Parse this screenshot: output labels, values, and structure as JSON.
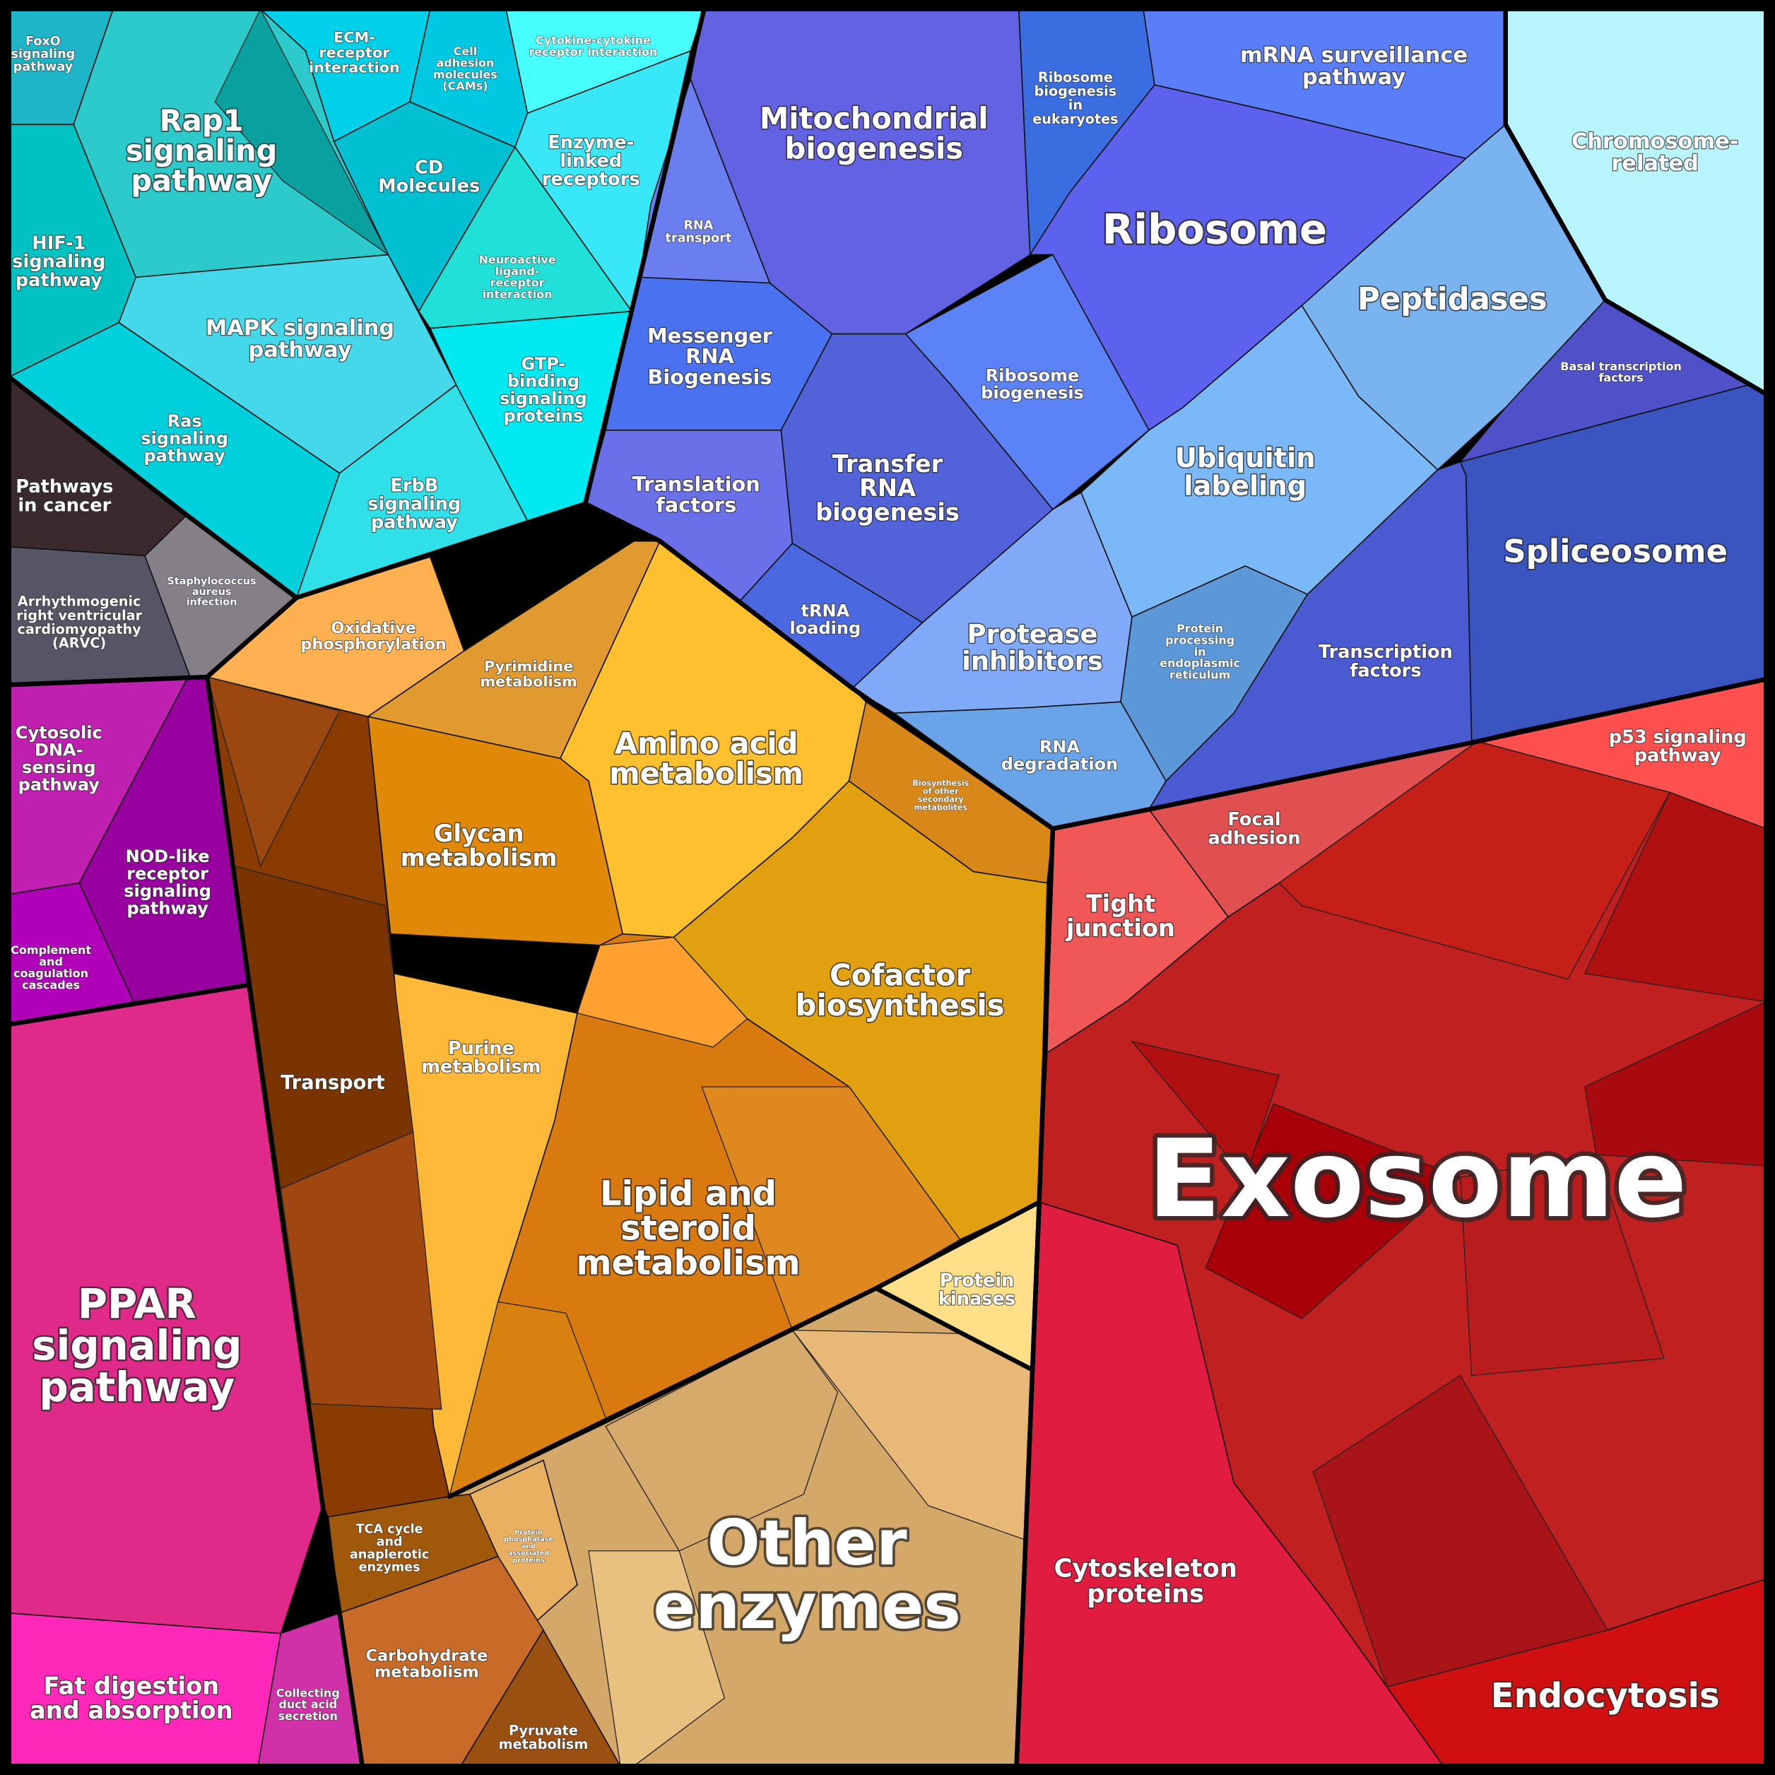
{
  "nodes": [
    {
      "lines": [
        "FoxO",
        "signaling",
        "pathway"
      ]
    },
    {
      "lines": [
        "Rap1",
        "signaling",
        "pathway"
      ]
    },
    {
      "lines": [
        "HIF-1",
        "signaling",
        "pathway"
      ]
    },
    {
      "lines": [
        "MAPK signaling",
        "pathway"
      ]
    },
    {
      "lines": [
        "Ras",
        "signaling",
        "pathway"
      ]
    },
    {
      "lines": [
        "ErbB",
        "signaling",
        "pathway"
      ]
    },
    {
      "lines": [
        "ECM-",
        "receptor",
        "interaction"
      ]
    },
    {
      "lines": [
        "Cell",
        "adhesion",
        "molecules",
        "(CAMs)"
      ]
    },
    {
      "lines": [
        "Cytokine-cytokine",
        "receptor interaction"
      ]
    },
    {
      "lines": [
        "CD",
        "Molecules"
      ]
    },
    {
      "lines": [
        "Enzyme-",
        "linked",
        "receptors"
      ]
    },
    {
      "lines": [
        "Neuroactive",
        "ligand-",
        "receptor",
        "interaction"
      ]
    },
    {
      "lines": [
        "GTP-",
        "binding",
        "signaling",
        "proteins"
      ]
    },
    {
      "lines": [
        "Pathways",
        "in cancer"
      ]
    },
    {
      "lines": [
        "Arrhythmogenic",
        "right ventricular",
        "cardiomyopathy",
        "(ARVC)"
      ]
    },
    {
      "lines": [
        "Staphylococcus",
        "aureus",
        "infection"
      ]
    },
    {
      "lines": [
        "Cytosolic",
        "DNA-",
        "sensing",
        "pathway"
      ]
    },
    {
      "lines": [
        "NOD-like",
        "receptor",
        "signaling",
        "pathway"
      ]
    },
    {
      "lines": [
        "Complement",
        "and",
        "coagulation",
        "cascades"
      ]
    },
    {
      "lines": [
        "PPAR",
        "signaling",
        "pathway"
      ]
    },
    {
      "lines": [
        "Fat digestion",
        "and absorption"
      ]
    },
    {
      "lines": [
        "Collecting",
        "duct acid",
        "secretion"
      ]
    },
    {
      "lines": [
        "Mitochondrial",
        "biogenesis"
      ]
    },
    {
      "lines": [
        "RNA",
        "transport"
      ]
    },
    {
      "lines": [
        "Ribosome",
        "biogenesis",
        "in",
        "eukaryotes"
      ]
    },
    {
      "lines": [
        "mRNA surveillance",
        "pathway"
      ]
    },
    {
      "lines": [
        "Ribosome"
      ]
    },
    {
      "lines": [
        "Messenger",
        "RNA",
        "Biogenesis"
      ]
    },
    {
      "lines": [
        "Ribosome",
        "biogenesis"
      ]
    },
    {
      "lines": [
        "Transfer",
        "RNA",
        "biogenesis"
      ]
    },
    {
      "lines": [
        "Translation",
        "factors"
      ]
    },
    {
      "lines": [
        "tRNA",
        "loading"
      ]
    },
    {
      "lines": [
        "Peptidases"
      ]
    },
    {
      "lines": [
        "Ubiquitin",
        "labeling"
      ]
    },
    {
      "lines": [
        "Protease",
        "inhibitors"
      ]
    },
    {
      "lines": [
        "Protein",
        "processing",
        "in",
        "endoplasmic",
        "reticulum"
      ]
    },
    {
      "lines": [
        "RNA",
        "degradation"
      ]
    },
    {
      "lines": [
        "Basal transcription",
        "factors"
      ]
    },
    {
      "lines": [
        "Spliceosome"
      ]
    },
    {
      "lines": [
        "Transcription",
        "factors"
      ]
    },
    {
      "lines": [
        "Chromosome-",
        "related"
      ]
    },
    {
      "lines": [
        "Oxidative",
        "phosphorylation"
      ]
    },
    {
      "lines": [
        "Pyrimidine",
        "metabolism"
      ]
    },
    {
      "lines": [
        "Amino acid",
        "metabolism"
      ]
    },
    {
      "lines": [
        "Biosynthesis",
        "of other",
        "secondary",
        "metabolites"
      ]
    },
    {
      "lines": [
        "Glycan",
        "metabolism"
      ]
    },
    {
      "lines": [
        "Cofactor",
        "biosynthesis"
      ]
    },
    {
      "lines": [
        "Purine",
        "metabolism"
      ]
    },
    {
      "lines": [
        "Lipid and",
        "steroid",
        "metabolism"
      ]
    },
    {
      "lines": [
        "Protein",
        "kinases"
      ]
    },
    {
      "lines": [
        "Other",
        "enzymes"
      ]
    },
    {
      "lines": [
        "Protein",
        "phosphatase",
        "and",
        "associated",
        "proteins"
      ]
    },
    {
      "lines": [
        "Transport"
      ]
    },
    {
      "lines": [
        "TCA cycle",
        "and",
        "anaplerotic",
        "enzymes"
      ]
    },
    {
      "lines": [
        "Carbohydrate",
        "metabolism"
      ]
    },
    {
      "lines": [
        "Pyruvate",
        "metabolism"
      ]
    },
    {
      "lines": [
        "Tight",
        "junction"
      ]
    },
    {
      "lines": [
        "Focal",
        "adhesion"
      ]
    },
    {
      "lines": [
        "p53 signaling",
        "pathway"
      ]
    },
    {
      "lines": [
        "Exosome"
      ]
    },
    {
      "lines": [
        "Cytoskeleton",
        "proteins"
      ]
    },
    {
      "lines": [
        "Endocytosis"
      ]
    }
  ]
}
